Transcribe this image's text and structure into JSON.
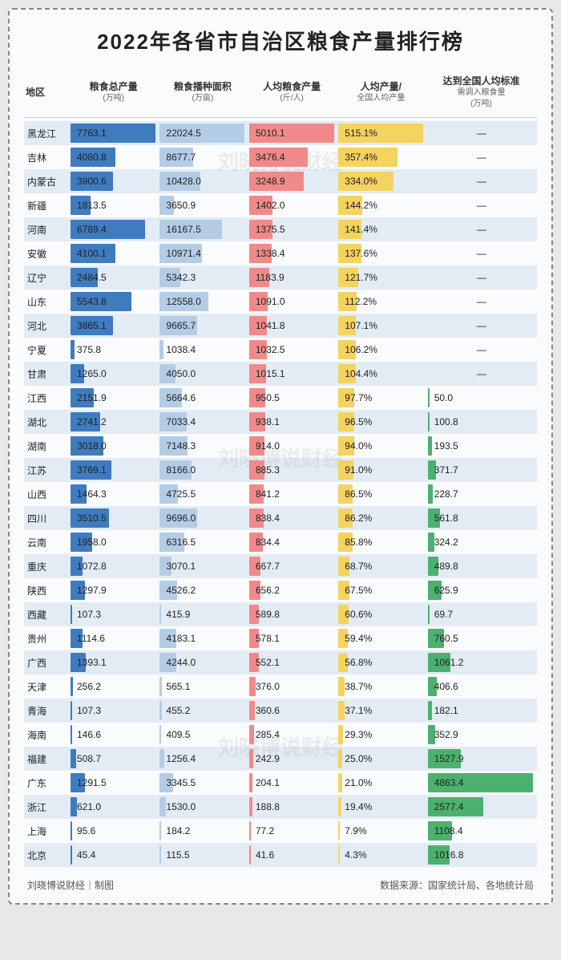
{
  "title": "2022年各省市自治区粮食产量排行榜",
  "watermark": "刘晓博说财经",
  "footer_left": "刘晓博说财经｜制图",
  "footer_right": "数据来源：国家统计局、各地统计局",
  "headers": {
    "region": "地区",
    "total": {
      "main": "粮食总产量",
      "sub": "(万吨)"
    },
    "area": {
      "main": "粮食播种面积",
      "sub": "(万亩)"
    },
    "percap": {
      "main": "人均粮食产量",
      "sub": "(斤/人)"
    },
    "ratio": {
      "main": "人均产量/",
      "sub": "全国人均产量"
    },
    "need": {
      "main": "达到全国人均标准",
      "sub": "需调入粮食量",
      "sub2": "(万吨)"
    }
  },
  "colors": {
    "row_alt": "#e3ecf5",
    "bar_total": "#3f7bbf",
    "bar_area": "#b4cde6",
    "bar_percap": "#f08a8a",
    "bar_ratio": "#f4d35e",
    "bar_need": "#4cb06f",
    "text": "#222222",
    "background": "#fafbfc"
  },
  "columns_max": {
    "total": 7763.1,
    "area": 22024.5,
    "percap": 5010.1,
    "ratio": 515.1,
    "need": 4863.4
  },
  "rows": [
    {
      "region": "黑龙江",
      "total": 7763.1,
      "area": 22024.5,
      "percap": 5010.1,
      "ratio": "515.1%",
      "ratio_v": 515.1,
      "need": "—",
      "need_v": null
    },
    {
      "region": "吉林",
      "total": 4080.8,
      "area": 8677.7,
      "percap": 3476.4,
      "ratio": "357.4%",
      "ratio_v": 357.4,
      "need": "—",
      "need_v": null
    },
    {
      "region": "内蒙古",
      "total": 3900.6,
      "area": 10428.0,
      "percap": 3248.9,
      "ratio": "334.0%",
      "ratio_v": 334.0,
      "need": "—",
      "need_v": null
    },
    {
      "region": "新疆",
      "total": 1813.5,
      "area": 3650.9,
      "percap": 1402.0,
      "ratio": "144.2%",
      "ratio_v": 144.2,
      "need": "—",
      "need_v": null
    },
    {
      "region": "河南",
      "total": 6789.4,
      "area": 16167.5,
      "percap": 1375.5,
      "ratio": "141.4%",
      "ratio_v": 141.4,
      "need": "—",
      "need_v": null
    },
    {
      "region": "安徽",
      "total": 4100.1,
      "area": 10971.4,
      "percap": 1338.4,
      "ratio": "137.6%",
      "ratio_v": 137.6,
      "need": "—",
      "need_v": null
    },
    {
      "region": "辽宁",
      "total": 2484.5,
      "area": 5342.3,
      "percap": 1183.9,
      "ratio": "121.7%",
      "ratio_v": 121.7,
      "need": "—",
      "need_v": null
    },
    {
      "region": "山东",
      "total": 5543.8,
      "area": 12558.0,
      "percap": 1091.0,
      "ratio": "112.2%",
      "ratio_v": 112.2,
      "need": "—",
      "need_v": null
    },
    {
      "region": "河北",
      "total": 3865.1,
      "area": 9665.7,
      "percap": 1041.8,
      "ratio": "107.1%",
      "ratio_v": 107.1,
      "need": "—",
      "need_v": null
    },
    {
      "region": "宁夏",
      "total": 375.8,
      "area": 1038.4,
      "percap": 1032.5,
      "ratio": "106.2%",
      "ratio_v": 106.2,
      "need": "—",
      "need_v": null
    },
    {
      "region": "甘肃",
      "total": 1265.0,
      "area": 4050.0,
      "percap": 1015.1,
      "ratio": "104.4%",
      "ratio_v": 104.4,
      "need": "—",
      "need_v": null
    },
    {
      "region": "江西",
      "total": 2151.9,
      "area": 5664.6,
      "percap": 950.5,
      "ratio": "97.7%",
      "ratio_v": 97.7,
      "need": "50.0",
      "need_v": 50.0
    },
    {
      "region": "湖北",
      "total": 2741.2,
      "area": 7033.4,
      "percap": 938.1,
      "ratio": "96.5%",
      "ratio_v": 96.5,
      "need": "100.8",
      "need_v": 100.8
    },
    {
      "region": "湖南",
      "total": 3018.0,
      "area": 7148.3,
      "percap": 914.0,
      "ratio": "94.0%",
      "ratio_v": 94.0,
      "need": "193.5",
      "need_v": 193.5
    },
    {
      "region": "江苏",
      "total": 3769.1,
      "area": 8166.0,
      "percap": 885.3,
      "ratio": "91.0%",
      "ratio_v": 91.0,
      "need": "371.7",
      "need_v": 371.7
    },
    {
      "region": "山西",
      "total": 1464.3,
      "area": 4725.5,
      "percap": 841.2,
      "ratio": "86.5%",
      "ratio_v": 86.5,
      "need": "228.7",
      "need_v": 228.7
    },
    {
      "region": "四川",
      "total": 3510.5,
      "area": 9696.0,
      "percap": 838.4,
      "ratio": "86.2%",
      "ratio_v": 86.2,
      "need": "561.8",
      "need_v": 561.8
    },
    {
      "region": "云南",
      "total": 1958.0,
      "area": 6316.5,
      "percap": 834.4,
      "ratio": "85.8%",
      "ratio_v": 85.8,
      "need": "324.2",
      "need_v": 324.2
    },
    {
      "region": "重庆",
      "total": 1072.8,
      "area": 3070.1,
      "percap": 667.7,
      "ratio": "68.7%",
      "ratio_v": 68.7,
      "need": "489.8",
      "need_v": 489.8
    },
    {
      "region": "陕西",
      "total": 1297.9,
      "area": 4526.2,
      "percap": 656.2,
      "ratio": "67.5%",
      "ratio_v": 67.5,
      "need": "625.9",
      "need_v": 625.9
    },
    {
      "region": "西藏",
      "total": 107.3,
      "area": 415.9,
      "percap": 589.8,
      "ratio": "60.6%",
      "ratio_v": 60.6,
      "need": "69.7",
      "need_v": 69.7
    },
    {
      "region": "贵州",
      "total": 1114.6,
      "area": 4183.1,
      "percap": 578.1,
      "ratio": "59.4%",
      "ratio_v": 59.4,
      "need": "760.5",
      "need_v": 760.5
    },
    {
      "region": "广西",
      "total": 1393.1,
      "area": 4244.0,
      "percap": 552.1,
      "ratio": "56.8%",
      "ratio_v": 56.8,
      "need": "1061.2",
      "need_v": 1061.2
    },
    {
      "region": "天津",
      "total": 256.2,
      "area": 565.1,
      "percap": 376.0,
      "ratio": "38.7%",
      "ratio_v": 38.7,
      "need": "406.6",
      "need_v": 406.6
    },
    {
      "region": "青海",
      "total": 107.3,
      "area": 455.2,
      "percap": 360.6,
      "ratio": "37.1%",
      "ratio_v": 37.1,
      "need": "182.1",
      "need_v": 182.1
    },
    {
      "region": "海南",
      "total": 146.6,
      "area": 409.5,
      "percap": 285.4,
      "ratio": "29.3%",
      "ratio_v": 29.3,
      "need": "352.9",
      "need_v": 352.9
    },
    {
      "region": "福建",
      "total": 508.7,
      "area": 1256.4,
      "percap": 242.9,
      "ratio": "25.0%",
      "ratio_v": 25.0,
      "need": "1527.9",
      "need_v": 1527.9
    },
    {
      "region": "广东",
      "total": 1291.5,
      "area": 3345.5,
      "percap": 204.1,
      "ratio": "21.0%",
      "ratio_v": 21.0,
      "need": "4863.4",
      "need_v": 4863.4
    },
    {
      "region": "浙江",
      "total": 621.0,
      "area": 1530.0,
      "percap": 188.8,
      "ratio": "19.4%",
      "ratio_v": 19.4,
      "need": "2577.4",
      "need_v": 2577.4
    },
    {
      "region": "上海",
      "total": 95.6,
      "area": 184.2,
      "percap": 77.2,
      "ratio": "7.9%",
      "ratio_v": 7.9,
      "need": "1108.4",
      "need_v": 1108.4
    },
    {
      "region": "北京",
      "total": 45.4,
      "area": 115.5,
      "percap": 41.6,
      "ratio": "4.3%",
      "ratio_v": 4.3,
      "need": "1016.8",
      "need_v": 1016.8
    }
  ]
}
